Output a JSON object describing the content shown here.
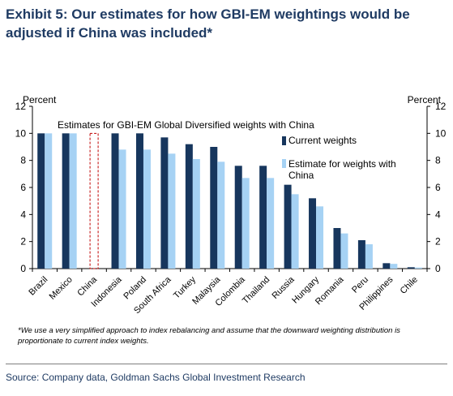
{
  "title": "Exhibit 5: Our estimates for how GBI-EM weightings would be adjusted if China was included*",
  "footnote": "*We use a very simplified approach to index rebalancing and assume that the downward weighting distribution is proportionate to current index weights.",
  "source": "Source: Company data, Goldman Sachs Global Investment Research",
  "chart_data": {
    "type": "bar",
    "title": "Estimates for  GBI-EM  Global  Diversified  weights  with China",
    "ylabel_left": "Percent",
    "ylabel_right": "Percent",
    "ylim": [
      0,
      12
    ],
    "yticks": [
      0,
      2,
      4,
      6,
      8,
      10,
      12
    ],
    "grid": false,
    "legend_position": "right",
    "categories": [
      "Brazil",
      "Mexico",
      "China",
      "Indonesia",
      "Poland",
      "South Africa",
      "Turkey",
      "Malaysia",
      "Colombia",
      "Thailand",
      "Russia",
      "Hungary",
      "Romania",
      "Peru",
      "Philippines",
      "Chile"
    ],
    "series": [
      {
        "name": "Current weights",
        "color": "#17365d",
        "values": [
          10,
          10,
          null,
          10,
          10,
          9.7,
          9.2,
          9.0,
          7.6,
          7.6,
          6.2,
          5.2,
          3.0,
          2.1,
          0.4,
          0.1
        ]
      },
      {
        "name": "Estimate for weights with China",
        "color": "#a6d2f4",
        "values": [
          10,
          10,
          null,
          8.8,
          8.8,
          8.5,
          8.1,
          7.9,
          6.7,
          6.7,
          5.5,
          4.6,
          2.6,
          1.8,
          0.35,
          0.08
        ]
      }
    ],
    "china_placeholder_color": "#c00000"
  }
}
